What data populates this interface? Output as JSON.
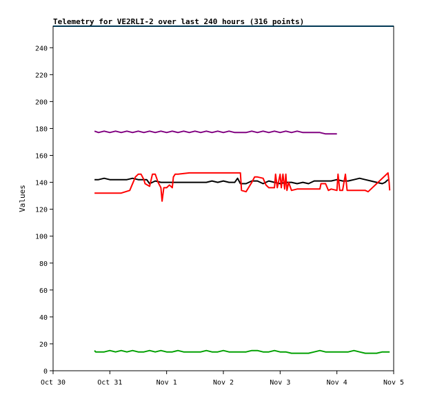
{
  "chart_data": {
    "type": "line",
    "title": "Telemetry for VE2RLI-2 over last 240 hours (316 points)",
    "xlabel": "",
    "ylabel": "Values",
    "x_ticks": [
      "Oct 30",
      "Oct 31",
      "Nov 1",
      "Nov 2",
      "Nov 3",
      "Nov 4",
      "Nov 5"
    ],
    "x_range_days": [
      0,
      6
    ],
    "y_ticks": [
      0,
      20,
      40,
      60,
      80,
      100,
      120,
      140,
      160,
      180,
      200,
      220,
      240
    ],
    "ylim": [
      0,
      256
    ],
    "grid": false,
    "legend": "none",
    "series": [
      {
        "color": "#800080",
        "points": [
          [
            0.73,
            178
          ],
          [
            0.8,
            177
          ],
          [
            0.9,
            178
          ],
          [
            1.0,
            177
          ],
          [
            1.1,
            178
          ],
          [
            1.2,
            177
          ],
          [
            1.3,
            178
          ],
          [
            1.4,
            177
          ],
          [
            1.5,
            178
          ],
          [
            1.6,
            177
          ],
          [
            1.7,
            178
          ],
          [
            1.8,
            177
          ],
          [
            1.9,
            178
          ],
          [
            2.0,
            177
          ],
          [
            2.1,
            178
          ],
          [
            2.2,
            177
          ],
          [
            2.3,
            178
          ],
          [
            2.4,
            177
          ],
          [
            2.5,
            178
          ],
          [
            2.6,
            177
          ],
          [
            2.7,
            178
          ],
          [
            2.8,
            177
          ],
          [
            2.9,
            178
          ],
          [
            3.0,
            177
          ],
          [
            3.1,
            178
          ],
          [
            3.2,
            177
          ],
          [
            3.3,
            177
          ],
          [
            3.4,
            177
          ],
          [
            3.5,
            178
          ],
          [
            3.6,
            177
          ],
          [
            3.7,
            178
          ],
          [
            3.8,
            177
          ],
          [
            3.9,
            178
          ],
          [
            4.0,
            177
          ],
          [
            4.1,
            178
          ],
          [
            4.2,
            177
          ],
          [
            4.3,
            178
          ],
          [
            4.4,
            177
          ],
          [
            4.5,
            177
          ],
          [
            4.6,
            177
          ],
          [
            4.7,
            177
          ],
          [
            4.8,
            176
          ],
          [
            4.9,
            176
          ],
          [
            5.0,
            176
          ]
        ]
      },
      {
        "color": "#000000",
        "points": [
          [
            0.73,
            142
          ],
          [
            0.8,
            142
          ],
          [
            0.9,
            143
          ],
          [
            1.0,
            142
          ],
          [
            1.1,
            142
          ],
          [
            1.2,
            142
          ],
          [
            1.3,
            142
          ],
          [
            1.4,
            143
          ],
          [
            1.5,
            142
          ],
          [
            1.6,
            142
          ],
          [
            1.65,
            142
          ],
          [
            1.7,
            139
          ],
          [
            1.8,
            141
          ],
          [
            1.9,
            140
          ],
          [
            2.0,
            140
          ],
          [
            2.1,
            140
          ],
          [
            2.2,
            140
          ],
          [
            2.3,
            140
          ],
          [
            2.4,
            140
          ],
          [
            2.5,
            140
          ],
          [
            2.6,
            140
          ],
          [
            2.7,
            140
          ],
          [
            2.8,
            141
          ],
          [
            2.9,
            140
          ],
          [
            3.0,
            141
          ],
          [
            3.1,
            140
          ],
          [
            3.2,
            140
          ],
          [
            3.25,
            143
          ],
          [
            3.3,
            139
          ],
          [
            3.4,
            139
          ],
          [
            3.5,
            141
          ],
          [
            3.6,
            141
          ],
          [
            3.7,
            139
          ],
          [
            3.8,
            141
          ],
          [
            3.9,
            140
          ],
          [
            4.0,
            139
          ],
          [
            4.1,
            140
          ],
          [
            4.2,
            140
          ],
          [
            4.3,
            139
          ],
          [
            4.4,
            140
          ],
          [
            4.5,
            139
          ],
          [
            4.6,
            141
          ],
          [
            4.7,
            141
          ],
          [
            4.8,
            141
          ],
          [
            4.9,
            141
          ],
          [
            5.0,
            142
          ],
          [
            5.1,
            141
          ],
          [
            5.2,
            141
          ],
          [
            5.3,
            142
          ],
          [
            5.4,
            143
          ],
          [
            5.5,
            142
          ],
          [
            5.6,
            141
          ],
          [
            5.7,
            140
          ],
          [
            5.8,
            139
          ],
          [
            5.85,
            140
          ],
          [
            5.9,
            142
          ]
        ]
      },
      {
        "color": "#ff0000",
        "points": [
          [
            0.73,
            132
          ],
          [
            1.0,
            132
          ],
          [
            1.2,
            132
          ],
          [
            1.35,
            134
          ],
          [
            1.45,
            144
          ],
          [
            1.5,
            146
          ],
          [
            1.55,
            146
          ],
          [
            1.6,
            142
          ],
          [
            1.62,
            139
          ],
          [
            1.7,
            137
          ],
          [
            1.75,
            146
          ],
          [
            1.8,
            146
          ],
          [
            1.85,
            140
          ],
          [
            1.9,
            136
          ],
          [
            1.92,
            126
          ],
          [
            1.95,
            136
          ],
          [
            2.0,
            136
          ],
          [
            2.05,
            138
          ],
          [
            2.1,
            136
          ],
          [
            2.12,
            144
          ],
          [
            2.15,
            146
          ],
          [
            2.2,
            146
          ],
          [
            2.4,
            147
          ],
          [
            2.6,
            147
          ],
          [
            2.8,
            147
          ],
          [
            3.0,
            147
          ],
          [
            3.2,
            147
          ],
          [
            3.3,
            147
          ],
          [
            3.32,
            134
          ],
          [
            3.4,
            133
          ],
          [
            3.5,
            140
          ],
          [
            3.55,
            144
          ],
          [
            3.6,
            144
          ],
          [
            3.7,
            143
          ],
          [
            3.75,
            138
          ],
          [
            3.8,
            136
          ],
          [
            3.9,
            136
          ],
          [
            3.92,
            146
          ],
          [
            3.95,
            136
          ],
          [
            4.0,
            146
          ],
          [
            4.02,
            136
          ],
          [
            4.05,
            146
          ],
          [
            4.08,
            135
          ],
          [
            4.1,
            146
          ],
          [
            4.12,
            134
          ],
          [
            4.15,
            140
          ],
          [
            4.2,
            134
          ],
          [
            4.3,
            135
          ],
          [
            4.4,
            135
          ],
          [
            4.5,
            135
          ],
          [
            4.6,
            135
          ],
          [
            4.7,
            135
          ],
          [
            4.72,
            139
          ],
          [
            4.8,
            139
          ],
          [
            4.85,
            134
          ],
          [
            4.9,
            135
          ],
          [
            5.0,
            134
          ],
          [
            5.02,
            146
          ],
          [
            5.05,
            134
          ],
          [
            5.1,
            134
          ],
          [
            5.15,
            146
          ],
          [
            5.18,
            134
          ],
          [
            5.3,
            134
          ],
          [
            5.5,
            134
          ],
          [
            5.55,
            133
          ],
          [
            5.9,
            147
          ],
          [
            5.92,
            140
          ],
          [
            5.93,
            134
          ]
        ]
      },
      {
        "color": "#00a000",
        "points": [
          [
            0.73,
            15
          ],
          [
            0.75,
            14
          ],
          [
            0.8,
            14
          ],
          [
            0.9,
            14
          ],
          [
            1.0,
            15
          ],
          [
            1.1,
            14
          ],
          [
            1.2,
            15
          ],
          [
            1.3,
            14
          ],
          [
            1.4,
            15
          ],
          [
            1.5,
            14
          ],
          [
            1.6,
            14
          ],
          [
            1.7,
            15
          ],
          [
            1.8,
            14
          ],
          [
            1.9,
            15
          ],
          [
            2.0,
            14
          ],
          [
            2.1,
            14
          ],
          [
            2.2,
            15
          ],
          [
            2.3,
            14
          ],
          [
            2.4,
            14
          ],
          [
            2.5,
            14
          ],
          [
            2.6,
            14
          ],
          [
            2.7,
            15
          ],
          [
            2.8,
            14
          ],
          [
            2.9,
            14
          ],
          [
            3.0,
            15
          ],
          [
            3.1,
            14
          ],
          [
            3.2,
            14
          ],
          [
            3.3,
            14
          ],
          [
            3.4,
            14
          ],
          [
            3.5,
            15
          ],
          [
            3.6,
            15
          ],
          [
            3.7,
            14
          ],
          [
            3.8,
            14
          ],
          [
            3.9,
            15
          ],
          [
            4.0,
            14
          ],
          [
            4.1,
            14
          ],
          [
            4.2,
            13
          ],
          [
            4.3,
            13
          ],
          [
            4.4,
            13
          ],
          [
            4.5,
            13
          ],
          [
            4.6,
            14
          ],
          [
            4.7,
            15
          ],
          [
            4.8,
            14
          ],
          [
            4.9,
            14
          ],
          [
            5.0,
            14
          ],
          [
            5.1,
            14
          ],
          [
            5.2,
            14
          ],
          [
            5.3,
            15
          ],
          [
            5.4,
            14
          ],
          [
            5.5,
            13
          ],
          [
            5.6,
            13
          ],
          [
            5.7,
            13
          ],
          [
            5.8,
            14
          ],
          [
            5.9,
            14
          ],
          [
            5.93,
            14
          ]
        ]
      }
    ]
  }
}
